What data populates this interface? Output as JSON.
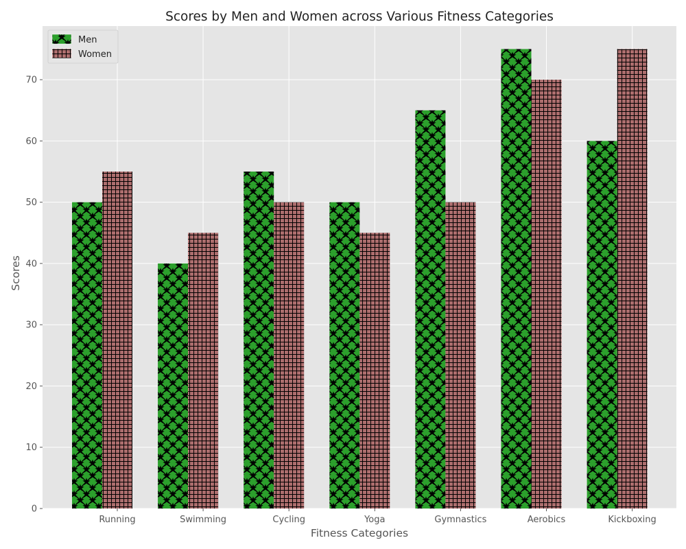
{
  "chart_data": {
    "type": "bar",
    "title": "Scores by Men and Women across Various Fitness Categories",
    "xlabel": "Fitness Categories",
    "ylabel": "Scores",
    "categories": [
      "Running",
      "Swimming",
      "Cycling",
      "Yoga",
      "Gymnastics",
      "Aerobics",
      "Kickboxing"
    ],
    "series": [
      {
        "name": "Men",
        "values": [
          50,
          40,
          55,
          50,
          65,
          75,
          60
        ],
        "color": "#2ca02c",
        "hatch": "star-cross"
      },
      {
        "name": "Women",
        "values": [
          55,
          45,
          50,
          45,
          50,
          70,
          75
        ],
        "color": "#ad6e6e",
        "hatch": "grid"
      }
    ],
    "ylim": [
      0,
      78.75
    ],
    "yticks": [
      0,
      10,
      20,
      30,
      40,
      50,
      60,
      70
    ],
    "grid": true,
    "legend_position": "top-left",
    "background": "#e5e5e5"
  }
}
